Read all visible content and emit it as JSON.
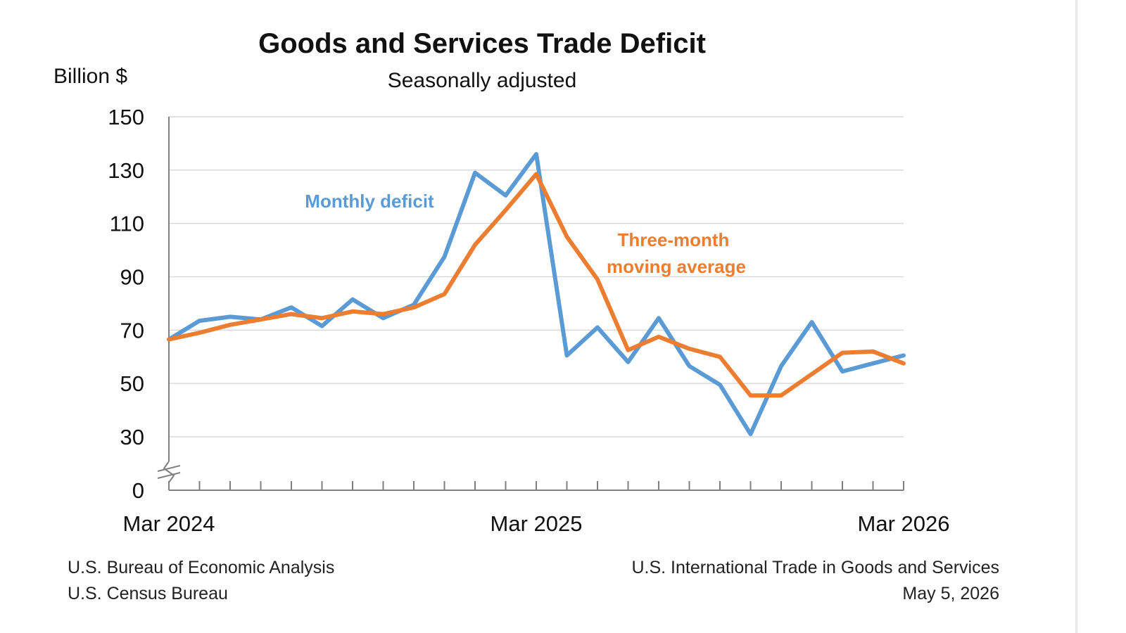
{
  "title": "Goods and Services Trade Deficit",
  "subtitle": "Seasonally adjusted",
  "ylabel": "Billion $",
  "footer": {
    "left_line1": "U.S. Bureau of Economic Analysis",
    "left_line2": "U.S. Census Bureau",
    "right_line1": "U.S. International Trade in Goods and Services",
    "right_line2": "May 5, 2026"
  },
  "colors": {
    "monthly": "#5b9bd5",
    "average": "#ed7d31",
    "grid": "#d9d9d9",
    "axis": "#7f7f7f"
  },
  "chart_data": {
    "type": "line",
    "title": "Goods and Services Trade Deficit",
    "subtitle": "Seasonally adjusted",
    "ylabel": "Billion $",
    "y_ticks": [
      "0",
      "30",
      "50",
      "70",
      "90",
      "110",
      "130",
      "150"
    ],
    "y_axis_break": "between 0 and 30",
    "ylim": [
      0,
      150
    ],
    "grid": "horizontal",
    "x_tick_labels": [
      "Mar 2024",
      "Mar 2025",
      "Mar 2026"
    ],
    "x": [
      "2024-03",
      "2024-04",
      "2024-05",
      "2024-06",
      "2024-07",
      "2024-08",
      "2024-09",
      "2024-10",
      "2024-11",
      "2024-12",
      "2025-01",
      "2025-02",
      "2025-03",
      "2025-04",
      "2025-05",
      "2025-06",
      "2025-07",
      "2025-08",
      "2025-09",
      "2025-10",
      "2025-11",
      "2025-12",
      "2026-01",
      "2026-02",
      "2026-03"
    ],
    "series": [
      {
        "name": "Monthly deficit",
        "values": [
          66.5,
          73.5,
          75,
          74,
          78.5,
          71.5,
          81.5,
          74.5,
          79.5,
          97.5,
          129,
          120.5,
          136,
          60.5,
          71,
          58,
          74.5,
          56.5,
          49.5,
          31,
          56.5,
          73,
          54.5,
          57.5,
          60.5
        ]
      },
      {
        "name": "Three-month moving average",
        "values": [
          66.5,
          69,
          72,
          74,
          76,
          74.5,
          77,
          76,
          78.5,
          83.5,
          102,
          115,
          128.5,
          105,
          89,
          62.5,
          67.5,
          63,
          60,
          45.5,
          45.5,
          53.5,
          61.5,
          62,
          57.5
        ]
      }
    ],
    "series_labels": {
      "monthly": "Monthly deficit",
      "average_line1": "Three-month",
      "average_line2": "moving average"
    }
  }
}
